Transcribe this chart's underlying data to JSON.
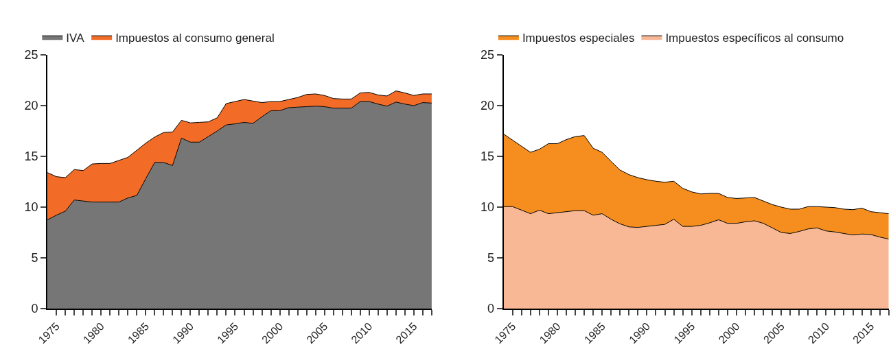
{
  "chart_data": [
    {
      "type": "area",
      "stacked": true,
      "legend": "top",
      "x": [
        1974,
        1975,
        1976,
        1977,
        1978,
        1979,
        1980,
        1981,
        1982,
        1983,
        1984,
        1985,
        1986,
        1987,
        1988,
        1989,
        1990,
        1991,
        1992,
        1993,
        1994,
        1995,
        1996,
        1997,
        1998,
        1999,
        2000,
        2001,
        2002,
        2003,
        2004,
        2005,
        2006,
        2007,
        2008,
        2009,
        2010,
        2011,
        2012,
        2013,
        2014,
        2015,
        2016,
        2017
      ],
      "series": [
        {
          "name": "IVA",
          "color": "#767676",
          "values": [
            8.75,
            9.2,
            9.6,
            10.7,
            10.6,
            10.5,
            10.5,
            10.5,
            10.5,
            10.9,
            11.15,
            12.8,
            14.4,
            14.4,
            14.1,
            16.8,
            16.4,
            16.4,
            16.95,
            17.5,
            18.1,
            18.2,
            18.35,
            18.25,
            18.9,
            19.5,
            19.5,
            19.8,
            19.85,
            19.9,
            19.95,
            19.9,
            19.75,
            19.75,
            19.75,
            20.4,
            20.4,
            20.15,
            19.95,
            20.35,
            20.15,
            20.0,
            20.3,
            20.25
          ]
        },
        {
          "name": "Impuestos al consumo general",
          "color": "#f26c28",
          "values": [
            4.65,
            3.8,
            3.3,
            3.0,
            3.0,
            3.75,
            3.8,
            3.8,
            4.1,
            4.0,
            4.45,
            3.5,
            2.5,
            2.95,
            3.3,
            1.75,
            1.9,
            1.95,
            1.45,
            1.3,
            2.1,
            2.2,
            2.25,
            2.2,
            1.4,
            0.9,
            0.9,
            0.8,
            0.95,
            1.2,
            1.2,
            1.1,
            0.95,
            0.9,
            0.9,
            0.85,
            0.9,
            0.9,
            1.0,
            1.1,
            1.1,
            1.0,
            0.85,
            0.9
          ]
        }
      ],
      "xlim": [
        1974,
        2017
      ],
      "xticks": [
        {
          "value": 1975,
          "label": "1975"
        },
        {
          "value": 1976,
          "label": null
        },
        {
          "value": 1977,
          "label": null
        },
        {
          "value": 1978,
          "label": null
        },
        {
          "value": 1979,
          "label": null
        },
        {
          "value": 1980,
          "label": "1980"
        },
        {
          "value": 1981,
          "label": null
        },
        {
          "value": 1982,
          "label": null
        },
        {
          "value": 1983,
          "label": null
        },
        {
          "value": 1984,
          "label": null
        },
        {
          "value": 1985,
          "label": "1985"
        },
        {
          "value": 1986,
          "label": null
        },
        {
          "value": 1987,
          "label": null
        },
        {
          "value": 1988,
          "label": null
        },
        {
          "value": 1989,
          "label": null
        },
        {
          "value": 1990,
          "label": "1990"
        },
        {
          "value": 1991,
          "label": null
        },
        {
          "value": 1992,
          "label": null
        },
        {
          "value": 1993,
          "label": null
        },
        {
          "value": 1994,
          "label": null
        },
        {
          "value": 1995,
          "label": "1995"
        },
        {
          "value": 1996,
          "label": null
        },
        {
          "value": 1997,
          "label": null
        },
        {
          "value": 1998,
          "label": null
        },
        {
          "value": 1999,
          "label": null
        },
        {
          "value": 2000,
          "label": "2000"
        },
        {
          "value": 2001,
          "label": null
        },
        {
          "value": 2002,
          "label": null
        },
        {
          "value": 2003,
          "label": null
        },
        {
          "value": 2004,
          "label": null
        },
        {
          "value": 2005,
          "label": "2005"
        },
        {
          "value": 2006,
          "label": null
        },
        {
          "value": 2007,
          "label": null
        },
        {
          "value": 2008,
          "label": null
        },
        {
          "value": 2009,
          "label": null
        },
        {
          "value": 2010,
          "label": "2010"
        },
        {
          "value": 2011,
          "label": null
        },
        {
          "value": 2012,
          "label": null
        },
        {
          "value": 2013,
          "label": null
        },
        {
          "value": 2014,
          "label": null
        },
        {
          "value": 2015,
          "label": "2015"
        },
        {
          "value": 2016,
          "label": null
        },
        {
          "value": 2017,
          "label": null
        }
      ],
      "ylim": [
        0,
        25
      ],
      "yticks": [
        0,
        5,
        10,
        15,
        20,
        25
      ]
    },
    {
      "type": "area",
      "stacked": true,
      "legend": "top",
      "x": [
        1974,
        1975,
        1976,
        1977,
        1978,
        1979,
        1980,
        1981,
        1982,
        1983,
        1984,
        1985,
        1986,
        1987,
        1988,
        1989,
        1990,
        1991,
        1992,
        1993,
        1994,
        1995,
        1996,
        1997,
        1998,
        1999,
        2000,
        2001,
        2002,
        2003,
        2004,
        2005,
        2006,
        2007,
        2008,
        2009,
        2010,
        2011,
        2012,
        2013,
        2014,
        2015,
        2016,
        2017
      ],
      "series": [
        {
          "name": "Impuestos específicos al consumo",
          "color": "#f8b896",
          "values": [
            10.05,
            10.05,
            9.7,
            9.35,
            9.7,
            9.35,
            9.45,
            9.55,
            9.65,
            9.65,
            9.2,
            9.35,
            8.8,
            8.35,
            8.05,
            8.0,
            8.1,
            8.2,
            8.3,
            8.8,
            8.1,
            8.1,
            8.2,
            8.45,
            8.75,
            8.4,
            8.4,
            8.55,
            8.65,
            8.4,
            7.95,
            7.5,
            7.4,
            7.6,
            7.85,
            7.95,
            7.65,
            7.55,
            7.4,
            7.25,
            7.35,
            7.3,
            7.05,
            6.85
          ]
        },
        {
          "name": "Impuestos especiales",
          "color": "#f68e1f",
          "values": [
            7.15,
            6.55,
            6.3,
            6.05,
            6.0,
            6.9,
            6.8,
            7.1,
            7.3,
            7.4,
            6.6,
            6.05,
            5.7,
            5.3,
            5.15,
            4.9,
            4.6,
            4.35,
            4.15,
            3.75,
            3.75,
            3.4,
            3.1,
            2.9,
            2.6,
            2.55,
            2.45,
            2.35,
            2.3,
            2.2,
            2.3,
            2.5,
            2.4,
            2.2,
            2.2,
            2.1,
            2.35,
            2.4,
            2.4,
            2.5,
            2.55,
            2.25,
            2.4,
            2.5
          ]
        }
      ],
      "xlim": [
        1974,
        2017
      ],
      "xticks": [
        {
          "value": 1975,
          "label": "1975"
        },
        {
          "value": 1976,
          "label": null
        },
        {
          "value": 1977,
          "label": null
        },
        {
          "value": 1978,
          "label": null
        },
        {
          "value": 1979,
          "label": null
        },
        {
          "value": 1980,
          "label": "1980"
        },
        {
          "value": 1981,
          "label": null
        },
        {
          "value": 1982,
          "label": null
        },
        {
          "value": 1983,
          "label": null
        },
        {
          "value": 1984,
          "label": null
        },
        {
          "value": 1985,
          "label": "1985"
        },
        {
          "value": 1986,
          "label": null
        },
        {
          "value": 1987,
          "label": null
        },
        {
          "value": 1988,
          "label": null
        },
        {
          "value": 1989,
          "label": null
        },
        {
          "value": 1990,
          "label": "1990"
        },
        {
          "value": 1991,
          "label": null
        },
        {
          "value": 1992,
          "label": null
        },
        {
          "value": 1993,
          "label": null
        },
        {
          "value": 1994,
          "label": null
        },
        {
          "value": 1995,
          "label": "1995"
        },
        {
          "value": 1996,
          "label": null
        },
        {
          "value": 1997,
          "label": null
        },
        {
          "value": 1998,
          "label": null
        },
        {
          "value": 1999,
          "label": null
        },
        {
          "value": 2000,
          "label": "2000"
        },
        {
          "value": 2001,
          "label": null
        },
        {
          "value": 2002,
          "label": null
        },
        {
          "value": 2003,
          "label": null
        },
        {
          "value": 2004,
          "label": null
        },
        {
          "value": 2005,
          "label": "2005"
        },
        {
          "value": 2006,
          "label": null
        },
        {
          "value": 2007,
          "label": null
        },
        {
          "value": 2008,
          "label": null
        },
        {
          "value": 2009,
          "label": null
        },
        {
          "value": 2010,
          "label": "2010"
        },
        {
          "value": 2011,
          "label": null
        },
        {
          "value": 2012,
          "label": null
        },
        {
          "value": 2013,
          "label": null
        },
        {
          "value": 2014,
          "label": null
        },
        {
          "value": 2015,
          "label": "2015"
        },
        {
          "value": 2016,
          "label": null
        },
        {
          "value": 2017,
          "label": null
        }
      ],
      "ylim": [
        0,
        25
      ],
      "yticks": [
        0,
        5,
        10,
        15,
        20,
        25
      ]
    }
  ]
}
